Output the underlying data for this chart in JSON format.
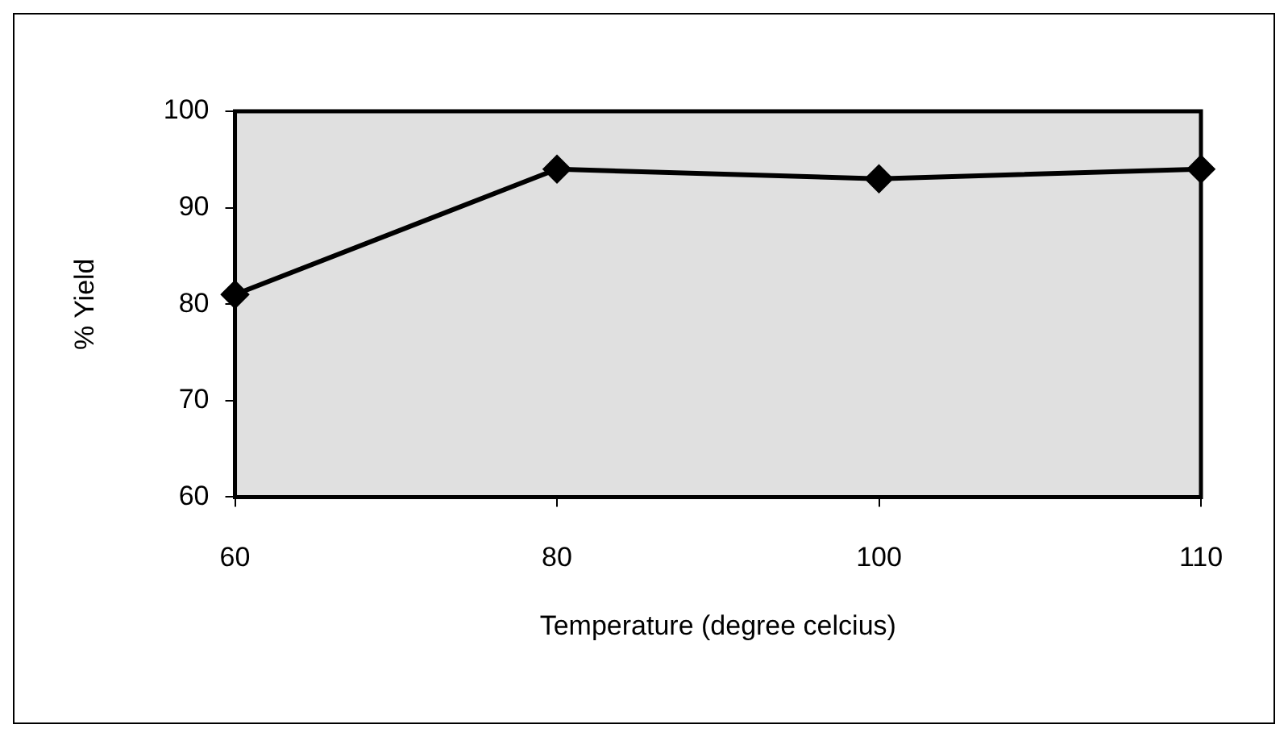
{
  "chart_data": {
    "type": "line",
    "xlabel": "Temperature (degree celcius)",
    "ylabel": "% Yield",
    "categories": [
      "60",
      "80",
      "100",
      "110"
    ],
    "series": [
      {
        "color": "#000000",
        "values": [
          81,
          94,
          93,
          94
        ]
      }
    ],
    "ylim": [
      60,
      100
    ],
    "yticks": [
      60,
      70,
      80,
      90,
      100
    ],
    "marker": "diamond",
    "line_style": "solid",
    "grid": false,
    "legend": false
  }
}
